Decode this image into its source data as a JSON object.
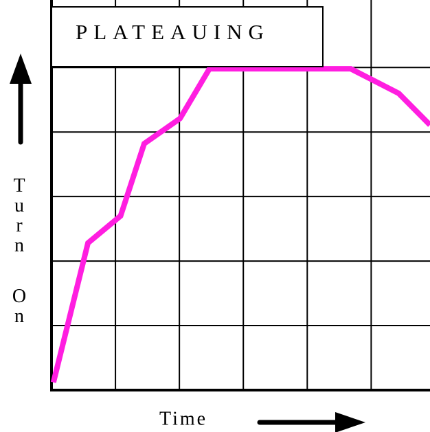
{
  "chart_data": {
    "type": "line",
    "title": "PLATEAUING",
    "xlabel": "Time",
    "ylabel": "Turn On",
    "x": [
      0.03,
      0.57,
      1.08,
      1.45,
      2.01,
      2.47,
      4.68,
      5.43,
      5.92
    ],
    "series": [
      {
        "name": "Turn On",
        "color": "#ff1ee0",
        "values": [
          0.12,
          2.28,
          2.7,
          3.82,
          4.21,
          4.98,
          4.98,
          4.6,
          4.11
        ]
      }
    ],
    "xlim": [
      0,
      5.92
    ],
    "ylim": [
      0,
      5.94
    ],
    "xticks": [
      0,
      1,
      2,
      3,
      4,
      5
    ],
    "yticks": [
      0,
      1,
      2,
      3,
      4,
      5
    ],
    "grid": true
  }
}
